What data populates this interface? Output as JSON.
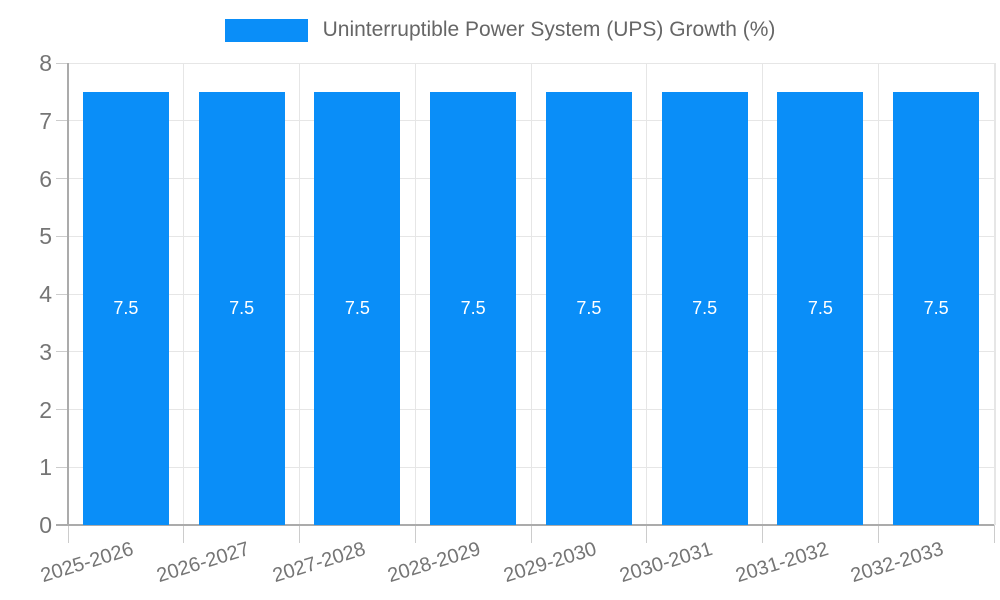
{
  "legend": {
    "label": "Uninterruptible Power System (UPS) Growth (%)"
  },
  "chart_data": {
    "type": "bar",
    "title": "Uninterruptible Power System (UPS) Growth (%)",
    "categories": [
      "2025-2026",
      "2026-2027",
      "2027-2028",
      "2028-2029",
      "2029-2030",
      "2030-2031",
      "2031-2032",
      "2032-2033"
    ],
    "values": [
      7.5,
      7.5,
      7.5,
      7.5,
      7.5,
      7.5,
      7.5,
      7.5
    ],
    "bar_labels": [
      "7.5",
      "7.5",
      "7.5",
      "7.5",
      "7.5",
      "7.5",
      "7.5",
      "7.5"
    ],
    "xlabel": "",
    "ylabel": "",
    "ylim": [
      0,
      8
    ],
    "yticks": [
      0,
      1,
      2,
      3,
      4,
      5,
      6,
      7,
      8
    ],
    "ytick_labels": [
      "0",
      "1",
      "2",
      "3",
      "4",
      "5",
      "6",
      "7",
      "8"
    ],
    "grid": true,
    "legend_position": "top",
    "colors": {
      "bar": "#0A8EF8",
      "grid": "#e6e6e6",
      "axis": "#ababab",
      "tick": "#cccccc",
      "axis_label": "#757575",
      "legend_text": "#666666",
      "bar_label": "#ffffff",
      "background": "#ffffff"
    }
  }
}
